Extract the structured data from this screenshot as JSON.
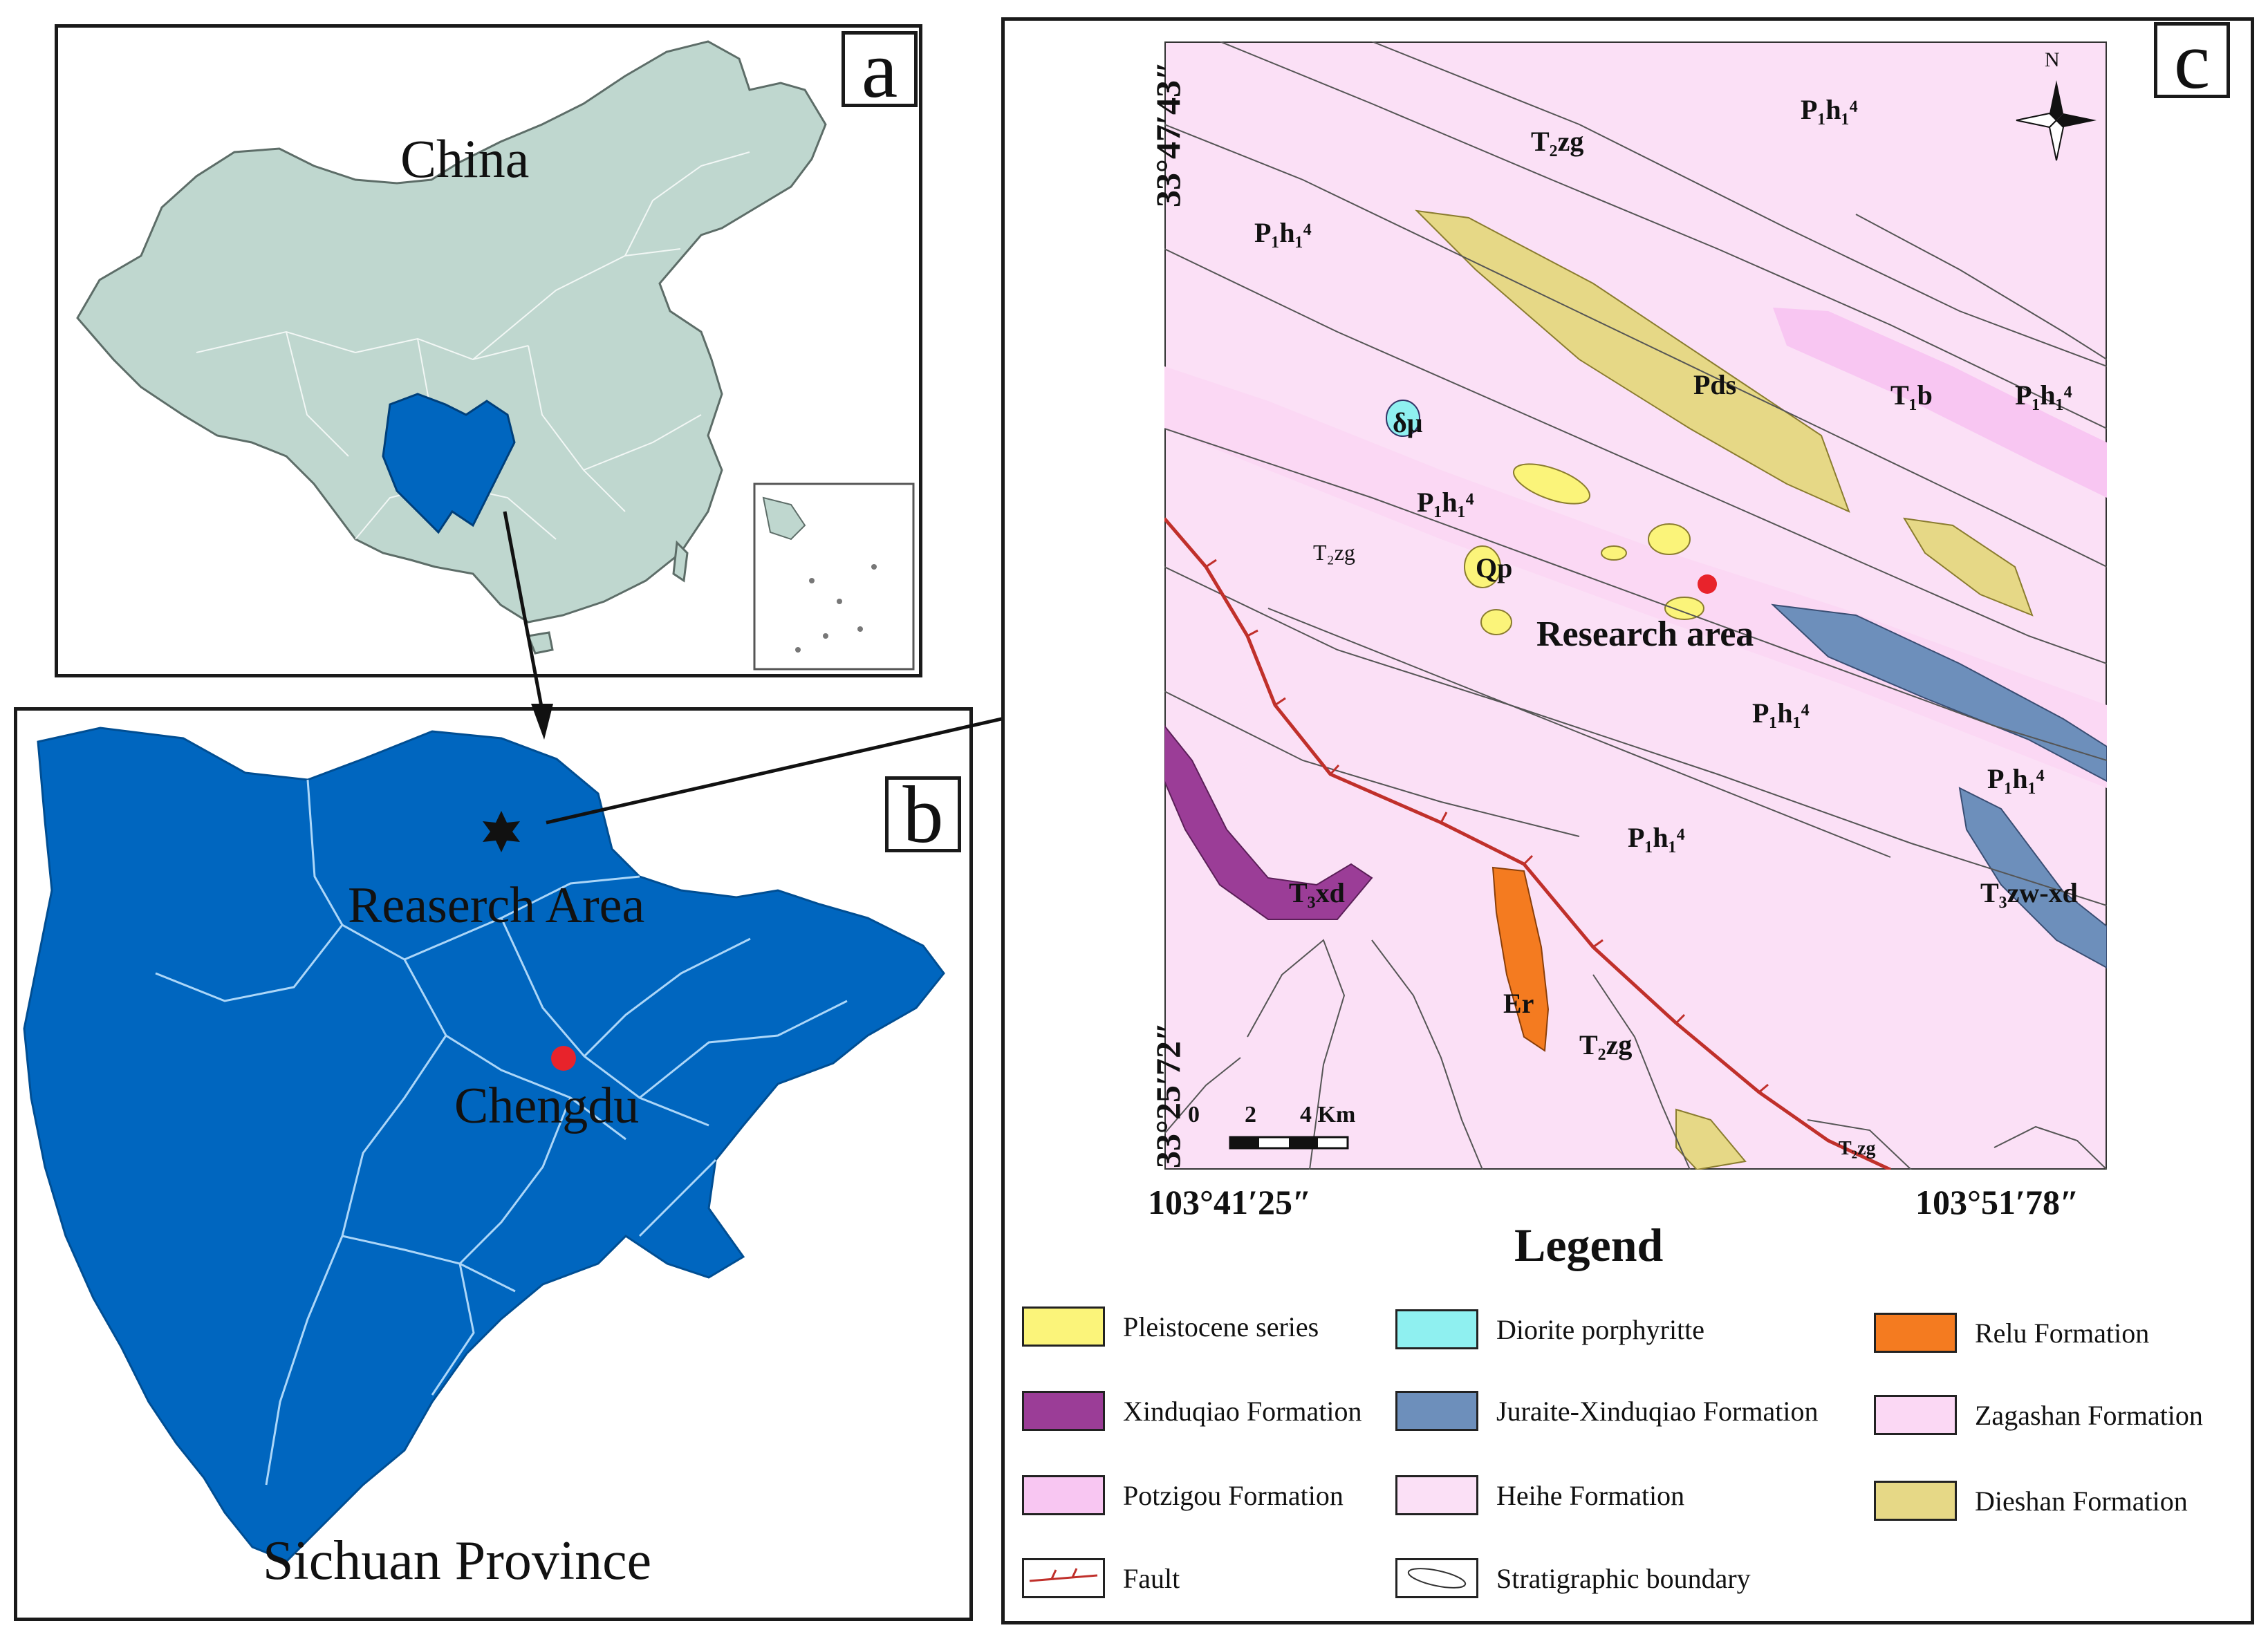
{
  "panel_a": {
    "label": "a",
    "country_name": "China"
  },
  "panel_b": {
    "label": "b",
    "research_area_label": "Reaserch Area",
    "city_label": "Chengdu",
    "province_name": "Sichuan Province"
  },
  "panel_c": {
    "label": "c",
    "north": "N",
    "lat_top": "33°47′43″",
    "lat_bottom": "33°25′72″",
    "lon_left": "103°41′25″",
    "lon_right": "103°51′78″",
    "research_area": "Research area",
    "scale": {
      "zero": "0",
      "mid": "2",
      "end": "4 Km"
    }
  },
  "legend": {
    "title": "Legend",
    "items": [
      {
        "label": "Pleistocene series",
        "color": "#fbf47a"
      },
      {
        "label": "Diorite porphyritte",
        "color": "#8ff0f0"
      },
      {
        "label": "Relu Formation",
        "color": "#f47b20"
      },
      {
        "label": "Xinduqiao Formation",
        "color": "#9b3d97"
      },
      {
        "label": "Juraite-Xinduqiao Formation",
        "color": "#6d8fbb"
      },
      {
        "label": "Zagashan Formation",
        "color": "#fbd8f4"
      },
      {
        "label": "Potzigou Formation",
        "color": "#f8c6f2"
      },
      {
        "label": "Heihe Formation",
        "color": "#fbe0f6"
      },
      {
        "label": "Dieshan Formation",
        "color": "#e6d886"
      },
      {
        "label": "Fault",
        "color": "#c0302b"
      },
      {
        "label": "Stratigraphic boundary",
        "color": "#ffffff"
      }
    ]
  },
  "colors": {
    "province_blue": "#0066bf",
    "china_fill": "#bfd7cf",
    "map_pink": "#fbe0f6",
    "red_dot": "#e8232b"
  }
}
